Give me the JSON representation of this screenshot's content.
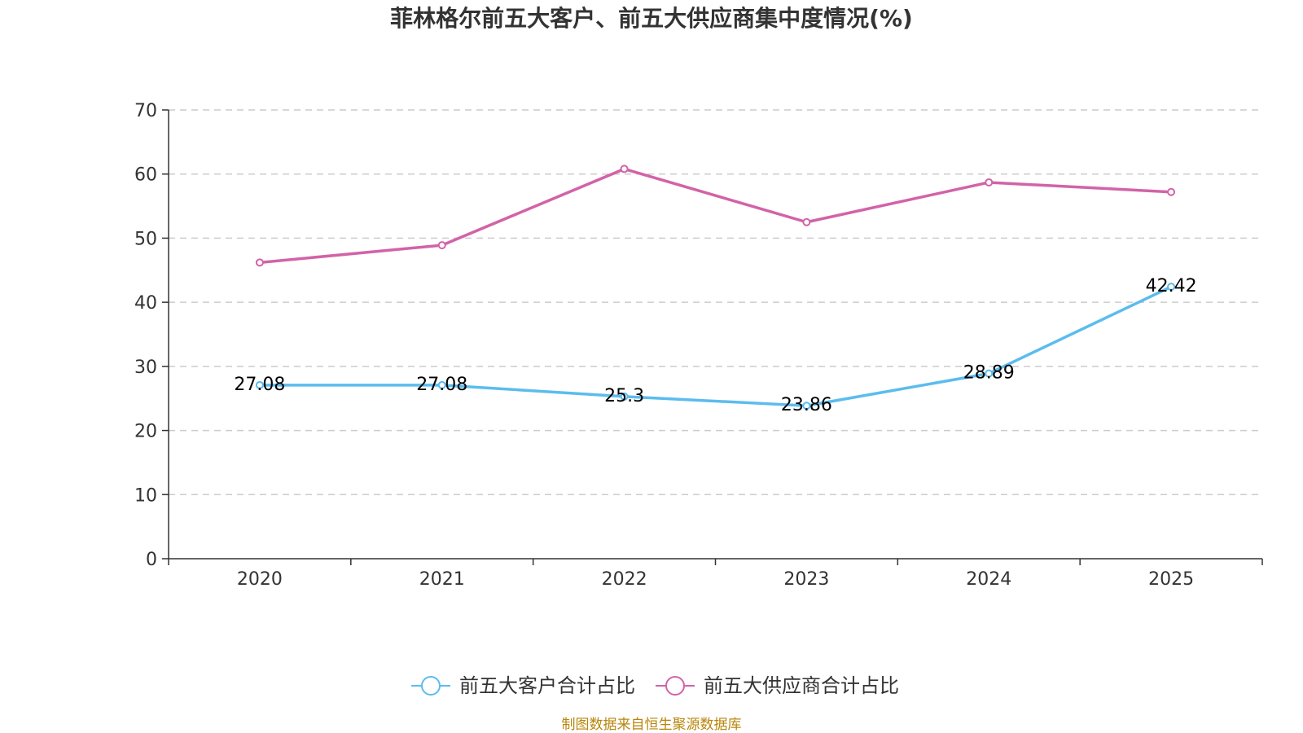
{
  "chart_data": {
    "type": "line",
    "title": "菲林格尔前五大客户、前五大供应商集中度情况(%)",
    "categories": [
      "2020",
      "2021",
      "2022",
      "2023",
      "2024",
      "2025"
    ],
    "ylim": [
      0,
      70
    ],
    "yticks": [
      "0",
      "10",
      "20",
      "30",
      "40",
      "50",
      "60",
      "70"
    ],
    "grid": true,
    "legend_position": "bottom",
    "series": [
      {
        "name": "前五大客户合计占比",
        "color": "#5bbcee",
        "values": [
          27.08,
          27.08,
          25.3,
          23.86,
          28.89,
          42.42
        ],
        "labels": [
          "27.08",
          "27.08",
          "25.3",
          "23.86",
          "28.89",
          "42.42"
        ],
        "show_labels": true
      },
      {
        "name": "前五大供应商合计占比",
        "color": "#d263a8",
        "values": [
          46.2,
          48.9,
          60.8,
          52.5,
          58.7,
          57.2
        ],
        "labels": [],
        "show_labels": false
      }
    ]
  },
  "source": "制图数据来自恒生聚源数据库"
}
